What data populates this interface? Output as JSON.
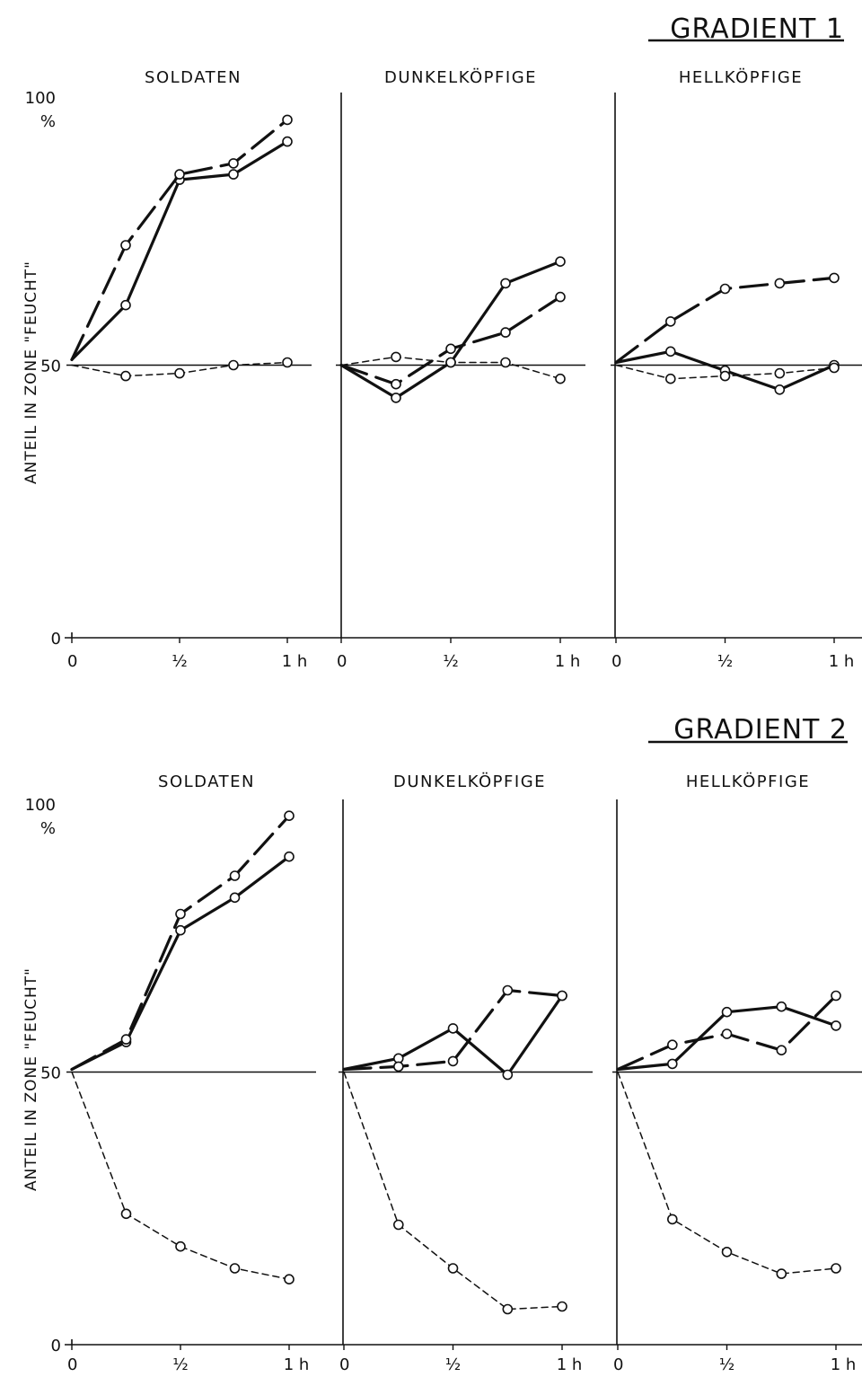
{
  "chart_data": [
    {
      "type": "line",
      "title": "GRADIENT 1",
      "ylabel": "ANTEIL IN ZONE \"FEUCHT\"",
      "yunit": "%",
      "ylim": [
        0,
        100
      ],
      "y_ticks": [
        "0",
        "50",
        "100"
      ],
      "x": [
        0,
        0.25,
        0.5,
        0.75,
        1
      ],
      "x_tick_labels": [
        "0",
        "½",
        "1 h"
      ],
      "line_styles": [
        "solid",
        "long-dash",
        "short-dash"
      ],
      "panels": [
        {
          "title": "SOLDATEN",
          "series": [
            {
              "style": "solid",
              "values": [
                51,
                61,
                84,
                85,
                91
              ]
            },
            {
              "style": "long-dash",
              "values": [
                51,
                72,
                85,
                87,
                95
              ]
            },
            {
              "style": "short-dash",
              "values": [
                50,
                48,
                48.5,
                50,
                50.5
              ]
            }
          ]
        },
        {
          "title": "DUNKELKÖPFIGE",
          "series": [
            {
              "style": "solid",
              "values": [
                50,
                44,
                50.5,
                65,
                69
              ]
            },
            {
              "style": "long-dash",
              "values": [
                50,
                46.5,
                53,
                56,
                62.5
              ]
            },
            {
              "style": "short-dash",
              "values": [
                50,
                51.5,
                50.5,
                50.5,
                47.5
              ]
            }
          ]
        },
        {
          "title": "HELLKÖPFIGE",
          "series": [
            {
              "style": "solid",
              "values": [
                50.5,
                52.5,
                49,
                45.5,
                50
              ]
            },
            {
              "style": "long-dash",
              "values": [
                50.5,
                58,
                64,
                65,
                66
              ]
            },
            {
              "style": "short-dash",
              "values": [
                50,
                47.5,
                48,
                48.5,
                49.5
              ]
            }
          ]
        }
      ]
    },
    {
      "type": "line",
      "title": "GRADIENT 2",
      "ylabel": "ANTEIL IN ZONE \"FEUCHT\"",
      "yunit": "%",
      "ylim": [
        0,
        100
      ],
      "y_ticks": [
        "0",
        "50",
        "100"
      ],
      "x": [
        0,
        0.25,
        0.5,
        0.75,
        1
      ],
      "x_tick_labels": [
        "0",
        "½",
        "1 h"
      ],
      "line_styles": [
        "solid",
        "long-dash",
        "short-dash"
      ],
      "panels": [
        {
          "title": "SOLDATEN",
          "series": [
            {
              "style": "solid",
              "values": [
                50.5,
                55.5,
                76,
                82,
                89.5
              ]
            },
            {
              "style": "long-dash",
              "values": [
                50.5,
                56,
                79,
                86,
                97
              ]
            },
            {
              "style": "short-dash",
              "values": [
                50,
                24,
                18,
                14,
                12
              ]
            }
          ]
        },
        {
          "title": "DUNKELKÖPFIGE",
          "series": [
            {
              "style": "solid",
              "values": [
                50.5,
                52.5,
                58,
                49.5,
                64
              ]
            },
            {
              "style": "long-dash",
              "values": [
                50.5,
                51,
                52,
                65,
                64
              ]
            },
            {
              "style": "short-dash",
              "values": [
                50,
                22,
                14,
                6.5,
                7
              ]
            }
          ]
        },
        {
          "title": "HELLKÖPFIGE",
          "series": [
            {
              "style": "solid",
              "values": [
                50.5,
                51.5,
                61,
                62,
                58.5
              ]
            },
            {
              "style": "long-dash",
              "values": [
                50.5,
                55,
                57,
                54,
                64
              ]
            },
            {
              "style": "short-dash",
              "values": [
                50,
                23,
                17,
                13,
                14
              ]
            }
          ]
        }
      ]
    }
  ]
}
